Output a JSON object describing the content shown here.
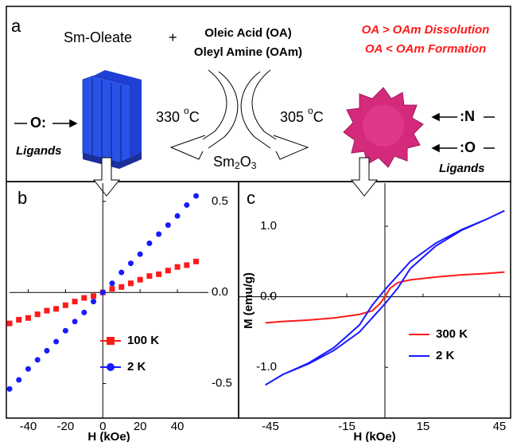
{
  "schematic": {
    "panel_label": "a",
    "precursor": "Sm-Oleate",
    "plus": "+",
    "surfactant_1": "Oleic Acid (OA)",
    "surfactant_2": "Oleyl Amine (OAm)",
    "rule_1": "OA > OAm Dissolution",
    "rule_2": "OA < OAm Formation",
    "temp_left": {
      "number": "330",
      "sup": "o",
      "unit": "C"
    },
    "temp_right": {
      "number": "305",
      "sup": "o",
      "unit": "C"
    },
    "oxide": [
      "Sm",
      "2",
      "O",
      "3"
    ],
    "ligand_left": "O:",
    "ligands_left": "Ligands",
    "ligand_right_1": ":N",
    "ligand_right_2": ":O",
    "ligands_right": "Ligands"
  },
  "chart_data": [
    {
      "type": "scatter",
      "panel_label": "b",
      "xlabel": "H (kOe)",
      "xlim": [
        -50,
        56.6
      ],
      "ylim": [
        -0.69,
        0.6
      ],
      "xticks": [
        -40,
        -20,
        0,
        20,
        40
      ],
      "yticks": [
        -0.5,
        {
          "value": 0,
          "label": "0.0"
        },
        0.5
      ],
      "y_axis_side": "right",
      "legend": "lower right",
      "x": [
        -50,
        -45,
        -40,
        -35,
        -30,
        -25,
        -20,
        -15,
        -10,
        -5,
        0,
        5,
        10,
        15,
        20,
        25,
        30,
        35,
        40,
        45,
        50
      ],
      "series": [
        {
          "name": "100 K",
          "color": "#ff1a1a",
          "marker": "square",
          "values": [
            -0.17,
            -0.15,
            -0.14,
            -0.12,
            -0.1,
            -0.09,
            -0.07,
            -0.05,
            -0.03,
            -0.02,
            0,
            0.02,
            0.03,
            0.05,
            0.07,
            0.09,
            0.1,
            0.12,
            0.14,
            0.15,
            0.17
          ]
        },
        {
          "name": "2 K",
          "color": "#1a1aff",
          "marker": "circle",
          "values": [
            -0.53,
            -0.48,
            -0.42,
            -0.37,
            -0.32,
            -0.27,
            -0.21,
            -0.16,
            -0.11,
            -0.05,
            0,
            0.05,
            0.11,
            0.16,
            0.21,
            0.27,
            0.32,
            0.37,
            0.42,
            0.48,
            0.53
          ]
        }
      ]
    },
    {
      "type": "line",
      "panel_label": "c",
      "xlabel": "H (kOe)",
      "ylabel": "M (emu/g)",
      "xlim": [
        -57.5,
        49.4
      ],
      "ylim": [
        -1.72,
        1.61
      ],
      "xticks": [
        -45,
        -15,
        15,
        45
      ],
      "yticks": [
        {
          "value": -1,
          "label": "-1.0"
        },
        {
          "value": 0,
          "label": "0.0"
        },
        {
          "value": 1,
          "label": "1.0"
        }
      ],
      "y_axis_side": "left",
      "legend": "lower right",
      "series": [
        {
          "name": "300 K",
          "color": "#ff1a1a",
          "x": [
            -47,
            -40,
            -30,
            -20,
            -10,
            -5,
            -2,
            0,
            2,
            5,
            10,
            20,
            30,
            40,
            47
          ],
          "values": [
            -0.37,
            -0.35,
            -0.33,
            -0.3,
            -0.25,
            -0.2,
            -0.1,
            0,
            0.12,
            0.2,
            0.24,
            0.28,
            0.31,
            0.33,
            0.35
          ]
        },
        {
          "name": "2 K",
          "color": "#1a1aff",
          "x": [
            47,
            40,
            30,
            20,
            10,
            5,
            0,
            -5,
            -10,
            -20,
            -30,
            -40,
            -47,
            -40,
            -30,
            -20,
            -10,
            -5,
            0,
            5,
            10,
            20,
            30,
            40,
            47
          ],
          "values": [
            1.22,
            1.1,
            0.95,
            0.76,
            0.5,
            0.3,
            0.1,
            -0.12,
            -0.4,
            -0.72,
            -0.94,
            -1.1,
            -1.25,
            -1.1,
            -0.95,
            -0.76,
            -0.5,
            -0.3,
            -0.1,
            0.12,
            0.4,
            0.72,
            0.94,
            1.1,
            1.22
          ]
        }
      ]
    }
  ]
}
